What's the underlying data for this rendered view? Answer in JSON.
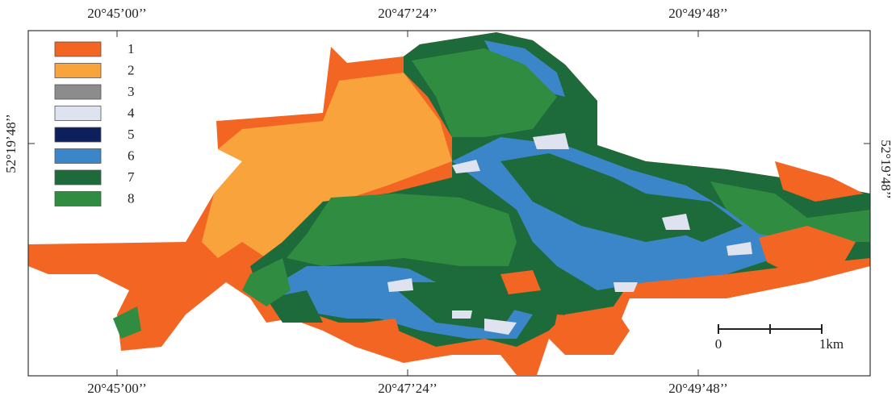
{
  "map": {
    "top_labels": [
      "20°45’00’’",
      "20°47’24’’",
      "20°49’48’’"
    ],
    "bottom_labels": [
      "20°45’00’’",
      "20°47’24’’",
      "20°49’48’’"
    ],
    "left_label": "52°19’48’’",
    "right_label": "52°19’48’’",
    "legend": [
      {
        "label": "1",
        "color": "#f26522"
      },
      {
        "label": "2",
        "color": "#f8a33c"
      },
      {
        "label": "3",
        "color": "#8c8c8c"
      },
      {
        "label": "4",
        "color": "#dfe2ef"
      },
      {
        "label": "5",
        "color": "#0e1f5e"
      },
      {
        "label": "6",
        "color": "#3b86c9"
      },
      {
        "label": "7",
        "color": "#1d6a3a"
      },
      {
        "label": "8",
        "color": "#2f8c40"
      }
    ],
    "scale_bar": {
      "start": "0",
      "end": "1km"
    }
  }
}
